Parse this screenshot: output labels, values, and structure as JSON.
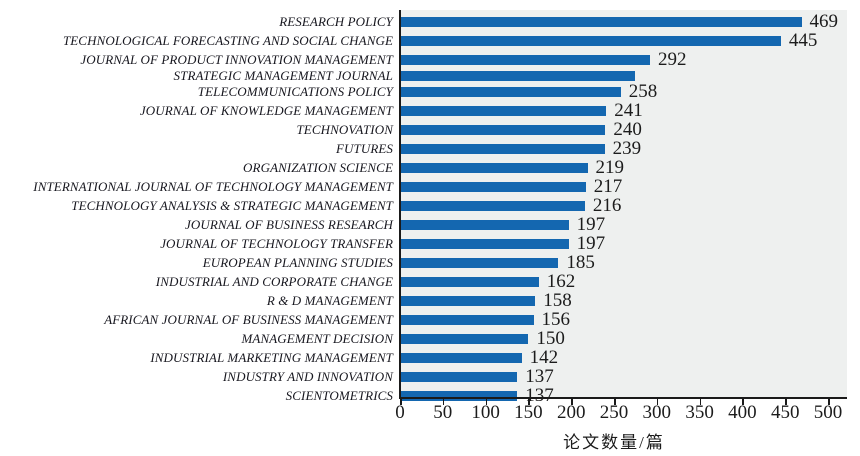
{
  "chart_data": {
    "type": "bar",
    "orientation": "horizontal",
    "title": "",
    "xlabel": "论文数量/篇",
    "ylabel": "",
    "xlim": [
      0,
      522
    ],
    "x_ticks": [
      0,
      50,
      100,
      150,
      200,
      250,
      300,
      350,
      400,
      450,
      500
    ],
    "grid": "off",
    "legend": "none",
    "categories": [
      "RESEARCH POLICY",
      "TECHNOLOGICAL FORECASTING AND SOCIAL CHANGE",
      "JOURNAL OF PRODUCT INNOVATION MANAGEMENT",
      "STRATEGIC MANAGEMENT JOURNAL",
      "TELECOMMUNICATIONS POLICY",
      "JOURNAL OF KNOWLEDGE MANAGEMENT",
      "TECHNOVATION",
      "FUTURES",
      "ORGANIZATION SCIENCE",
      "INTERNATIONAL JOURNAL OF TECHNOLOGY MANAGEMENT",
      "TECHNOLOGY ANALYSIS & STRATEGIC MANAGEMENT",
      "JOURNAL OF BUSINESS RESEARCH",
      "JOURNAL OF TECHNOLOGY TRANSFER",
      "EUROPEAN PLANNING STUDIES",
      "INDUSTRIAL AND CORPORATE CHANGE",
      "R & D MANAGEMENT",
      "AFRICAN JOURNAL OF BUSINESS MANAGEMENT",
      "MANAGEMENT DECISION",
      "INDUSTRIAL MARKETING MANAGEMENT",
      "INDUSTRY AND INNOVATION",
      "SCIENTOMETRICS"
    ],
    "values": [
      469,
      445,
      292,
      274,
      258,
      241,
      240,
      239,
      219,
      217,
      216,
      197,
      197,
      185,
      162,
      158,
      156,
      150,
      142,
      137,
      137
    ],
    "data_labels": [
      "469",
      "445",
      "292",
      "",
      "258",
      "241",
      "240",
      "239",
      "219",
      "217",
      "216",
      "197",
      "197",
      "185",
      "162",
      "158",
      "156",
      "150",
      "142",
      "137",
      "137"
    ],
    "colors": {
      "bar": "#1467b0",
      "plot_background": "#eef0ef",
      "axis": "#1a1a1a",
      "category_text": "#17171f",
      "value_text": "#1c1c1c"
    }
  }
}
